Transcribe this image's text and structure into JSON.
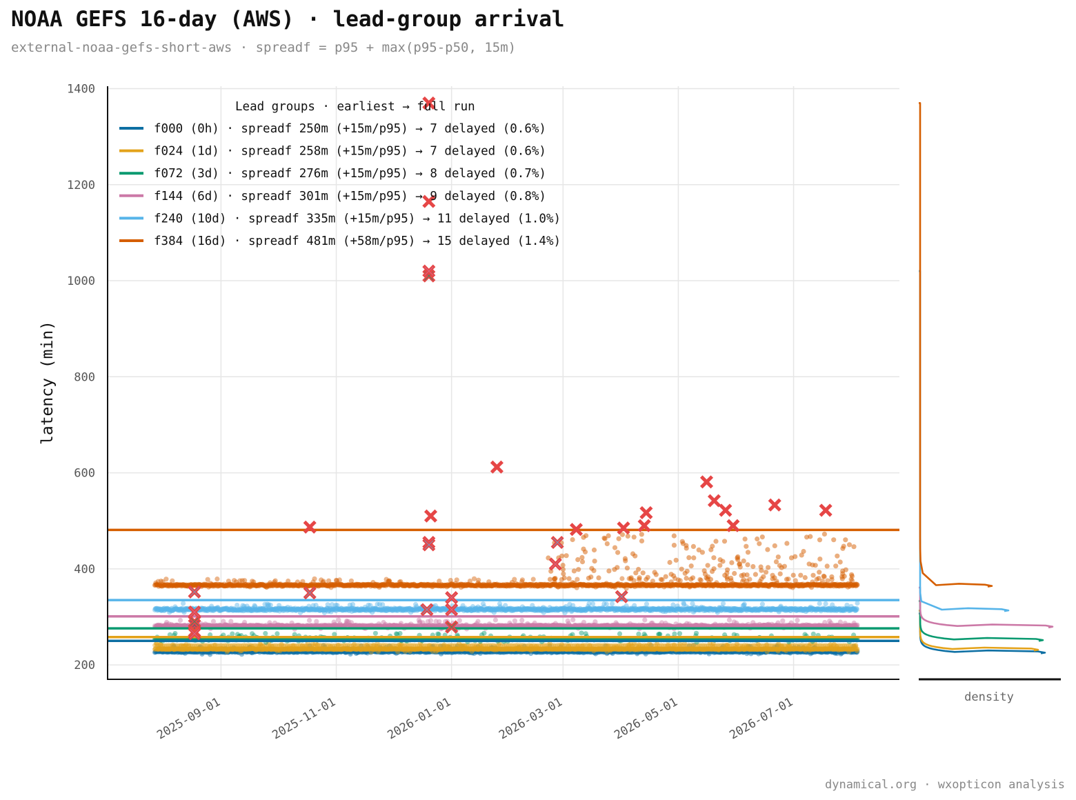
{
  "title": "NOAA GEFS 16-day (AWS) · lead-group arrival",
  "subtitle": "external-noaa-gefs-short-aws · spreadf = p95 + max(p95-p50, 15m)",
  "credit": "dynamical.org · wxopticon analysis",
  "chart_data": {
    "type": "scatter",
    "ylabel": "latency (min)",
    "xlabel": "",
    "ylim": [
      170,
      1405
    ],
    "xlim": [
      "2025-07-03",
      "2026-08-26"
    ],
    "y_ticks": [
      200,
      400,
      600,
      800,
      1000,
      1200,
      1400
    ],
    "x_ticks": [
      "2025-09-01",
      "2025-11-01",
      "2026-01-01",
      "2026-03-01",
      "2026-05-01",
      "2026-07-01"
    ],
    "grid": true,
    "legend_title": "Lead groups · earliest → full run",
    "legend_position": "top-left",
    "marginal_label": "density",
    "series": [
      {
        "name": "f000 (0h)",
        "legend": "f000 (0h)  ·  spreadf 250m (+15m/p95)  → 7 delayed (0.6%)",
        "color": "#0d6fa3",
        "spreadf": 250,
        "baseline": 227,
        "band_a": [
          226,
          229
        ],
        "band_b": [
          240,
          241
        ],
        "delayed": [
          [
            "2025-08-18",
            283
          ],
          [
            "2026-01-01",
            279
          ]
        ]
      },
      {
        "name": "f024 (1d)",
        "legend": "f024 (1d)  ·  spreadf 258m (+15m/p95)  → 7 delayed (0.6%)",
        "color": "#e3a21a",
        "spreadf": 258,
        "baseline": 233,
        "band_a": [
          232,
          234
        ],
        "delayed": [
          [
            "2025-08-18",
            270
          ],
          [
            "2026-01-01",
            279
          ]
        ]
      },
      {
        "name": "f072 (3d)",
        "legend": "f072 (3d)  ·  spreadf 276m (+15m/p95)  → 8 delayed (0.7%)",
        "color": "#0a9a70",
        "spreadf": 276,
        "baseline": 253,
        "band_a": [
          252,
          255
        ],
        "delayed": [
          [
            "2025-08-18",
            290
          ],
          [
            "2026-01-01",
            279
          ],
          [
            "2025-12-20",
            1010
          ]
        ]
      },
      {
        "name": "f144 (6d)",
        "legend": "f144 (6d)  ·  spreadf 301m (+15m/p95)  → 9 delayed (0.8%)",
        "color": "#cc79a7",
        "spreadf": 301,
        "baseline": 281,
        "band_a": [
          279,
          283
        ],
        "delayed": [
          [
            "2025-08-18",
            310
          ],
          [
            "2025-08-18",
            265
          ],
          [
            "2025-12-20",
            1020
          ],
          [
            "2025-12-20",
            455
          ],
          [
            "2026-01-01",
            315
          ],
          [
            "2026-01-01",
            340
          ],
          [
            "2026-02-25",
            410
          ]
        ]
      },
      {
        "name": "f240 (10d)",
        "legend": "f240 (10d)  ·  spreadf 335m (+15m/p95)  → 11 delayed (1.0%)",
        "color": "#56b4e9",
        "spreadf": 335,
        "baseline": 315,
        "band_a": [
          313,
          318
        ],
        "delayed": [
          [
            "2025-08-18",
            352
          ],
          [
            "2025-10-18",
            350
          ],
          [
            "2025-12-19",
            315
          ],
          [
            "2025-12-20",
            450
          ],
          [
            "2026-02-26",
            455
          ],
          [
            "2026-04-01",
            342
          ]
        ]
      },
      {
        "name": "f384 (16d)",
        "legend": "f384 (16d)  ·  spreadf 481m (+58m/p95)  → 15 delayed (1.4%)",
        "color": "#d55e00",
        "spreadf": 481,
        "baseline": 366,
        "band_a": [
          364,
          368
        ],
        "delayed": [
          [
            "2025-12-20",
            1370
          ],
          [
            "2025-12-20",
            1165
          ],
          [
            "2025-12-21",
            510
          ],
          [
            "2025-10-18",
            487
          ],
          [
            "2026-01-25",
            612
          ],
          [
            "2026-03-08",
            482
          ],
          [
            "2026-04-02",
            485
          ],
          [
            "2026-04-14",
            517
          ],
          [
            "2026-04-13",
            490
          ],
          [
            "2026-05-16",
            581
          ],
          [
            "2026-05-20",
            542
          ],
          [
            "2026-05-26",
            522
          ],
          [
            "2026-05-30",
            490
          ],
          [
            "2026-06-21",
            533
          ],
          [
            "2026-07-18",
            522
          ]
        ]
      }
    ]
  }
}
